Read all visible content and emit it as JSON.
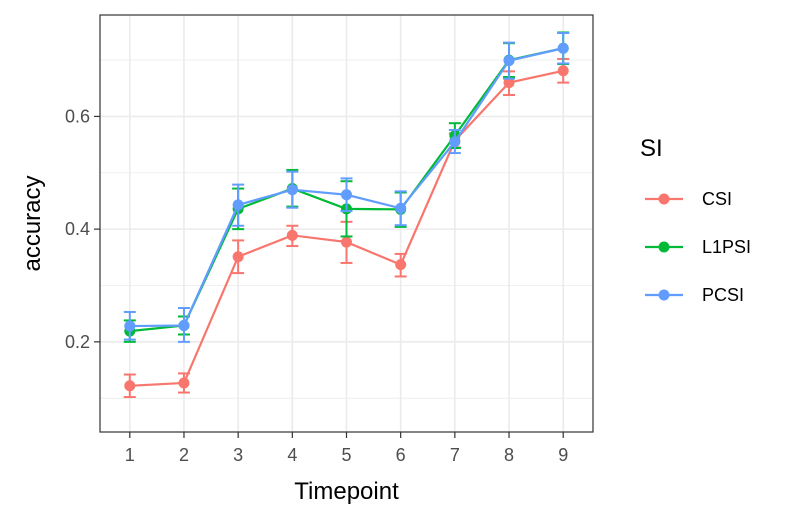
{
  "chart_data": {
    "type": "line",
    "xlabel": "Timepoint",
    "ylabel": "accuracy",
    "x": [
      1,
      2,
      3,
      4,
      5,
      6,
      7,
      8,
      9
    ],
    "xlim": [
      0.45,
      9.55
    ],
    "ylim": [
      0.04,
      0.78
    ],
    "yticks": [
      0.2,
      0.4,
      0.6
    ],
    "ytick_labels": [
      "0.2",
      "0.4",
      "0.6"
    ],
    "xtick_labels": [
      "1",
      "2",
      "3",
      "4",
      "5",
      "6",
      "7",
      "8",
      "9"
    ],
    "grid": true,
    "legend": {
      "title": "SI",
      "position": "right"
    },
    "series": [
      {
        "name": "CSI",
        "color": "#F8766D",
        "values": [
          0.122,
          0.127,
          0.351,
          0.389,
          0.377,
          0.337,
          0.557,
          0.66,
          0.681
        ],
        "lower": [
          0.102,
          0.11,
          0.322,
          0.37,
          0.34,
          0.316,
          0.545,
          0.638,
          0.66
        ],
        "upper": [
          0.142,
          0.144,
          0.38,
          0.406,
          0.413,
          0.356,
          0.57,
          0.68,
          0.702
        ]
      },
      {
        "name": "L1PSI",
        "color": "#00BA38",
        "values": [
          0.219,
          0.229,
          0.436,
          0.472,
          0.436,
          0.435,
          0.566,
          0.7,
          0.721
        ],
        "lower": [
          0.2,
          0.213,
          0.4,
          0.44,
          0.387,
          0.404,
          0.544,
          0.67,
          0.693
        ],
        "upper": [
          0.238,
          0.245,
          0.472,
          0.505,
          0.485,
          0.465,
          0.588,
          0.73,
          0.749
        ]
      },
      {
        "name": "PCSI",
        "color": "#619CFF",
        "values": [
          0.228,
          0.229,
          0.443,
          0.47,
          0.461,
          0.437,
          0.555,
          0.699,
          0.721
        ],
        "lower": [
          0.204,
          0.2,
          0.406,
          0.438,
          0.432,
          0.407,
          0.535,
          0.667,
          0.694
        ],
        "upper": [
          0.253,
          0.26,
          0.479,
          0.502,
          0.49,
          0.467,
          0.576,
          0.731,
          0.748
        ]
      }
    ]
  }
}
